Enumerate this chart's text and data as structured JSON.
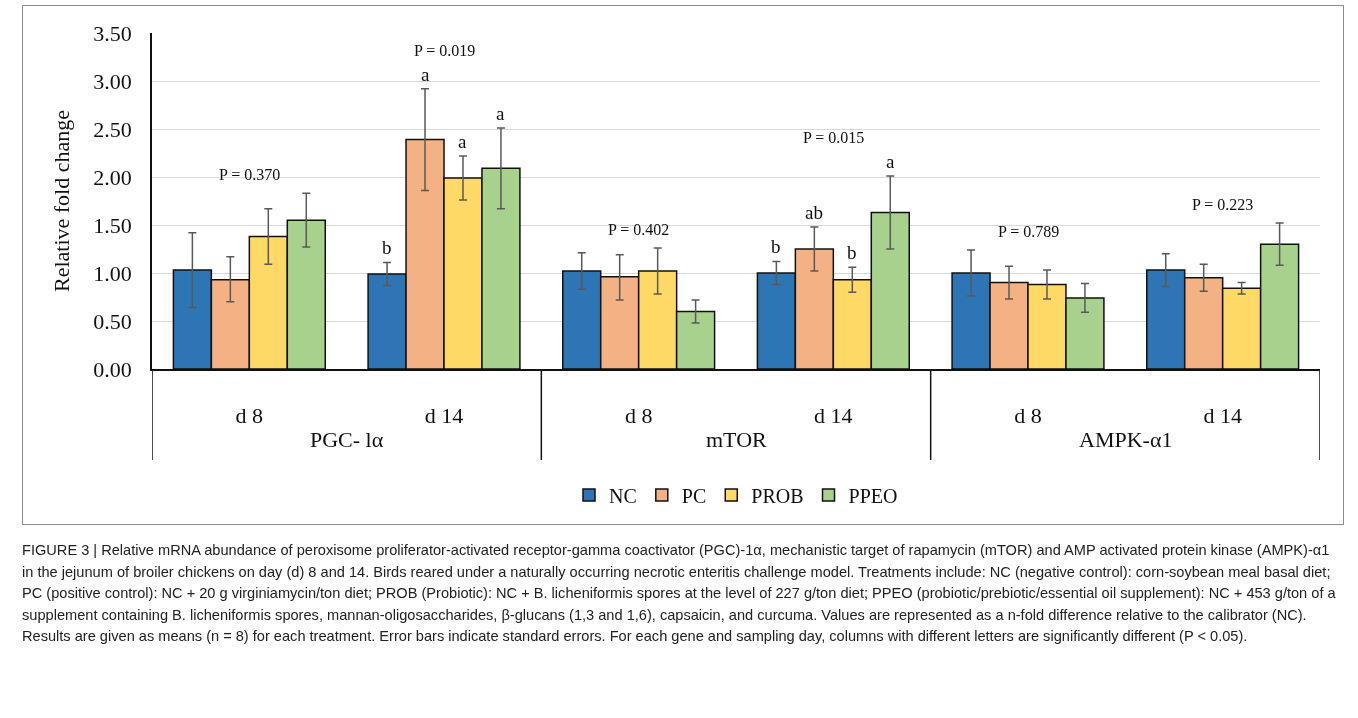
{
  "chart_data": {
    "type": "bar",
    "ylabel": "Relative fold change",
    "categories": [
      "d 8",
      "d 14",
      "d 8",
      "d 14",
      "d 8",
      "d 14"
    ],
    "series": [
      {
        "name": "NC",
        "color": "#2e75b6",
        "values": [
          1.03,
          0.99,
          1.02,
          1.0,
          1.0,
          1.03
        ],
        "errors": [
          [
            0.64,
            1.42
          ],
          [
            0.87,
            1.11
          ],
          [
            0.83,
            1.21
          ],
          [
            0.88,
            1.12
          ],
          [
            0.76,
            1.24
          ],
          [
            0.86,
            1.2
          ]
        ],
        "value_labels": [
          null,
          "b",
          null,
          "b",
          null,
          null
        ]
      },
      {
        "name": "PC",
        "color": "#f4b183",
        "values": [
          0.93,
          2.39,
          0.96,
          1.25,
          0.9,
          0.95
        ],
        "errors": [
          [
            0.7,
            1.17
          ],
          [
            1.86,
            2.92
          ],
          [
            0.72,
            1.19
          ],
          [
            1.02,
            1.48
          ],
          [
            0.73,
            1.07
          ],
          [
            0.81,
            1.09
          ]
        ],
        "value_labels": [
          null,
          "a",
          null,
          "ab",
          null,
          null
        ]
      },
      {
        "name": "PROB",
        "color": "#ffd966",
        "values": [
          1.38,
          1.99,
          1.02,
          0.93,
          0.88,
          0.84
        ],
        "errors": [
          [
            1.09,
            1.67
          ],
          [
            1.76,
            2.22
          ],
          [
            0.78,
            1.26
          ],
          [
            0.8,
            1.06
          ],
          [
            0.73,
            1.03
          ],
          [
            0.78,
            0.9
          ]
        ],
        "value_labels": [
          null,
          "a",
          null,
          "b",
          null,
          null
        ]
      },
      {
        "name": "PPEO",
        "color": "#a9d18e",
        "values": [
          1.55,
          2.09,
          0.6,
          1.63,
          0.74,
          1.3
        ],
        "errors": [
          [
            1.27,
            1.83
          ],
          [
            1.67,
            2.51
          ],
          [
            0.48,
            0.72
          ],
          [
            1.25,
            2.01
          ],
          [
            0.59,
            0.89
          ],
          [
            1.08,
            1.52
          ]
        ],
        "value_labels": [
          null,
          "a",
          null,
          "a",
          null,
          null
        ]
      }
    ],
    "ylim": [
      0,
      3.5
    ],
    "yticks": [
      {
        "value": 0,
        "label": "0.00"
      },
      {
        "value": 0.5,
        "label": "0.50"
      },
      {
        "value": 1,
        "label": "1.00"
      },
      {
        "value": 1.5,
        "label": "1.50"
      },
      {
        "value": 2,
        "label": "2.00"
      },
      {
        "value": 2.5,
        "label": "2.50"
      },
      {
        "value": 3,
        "label": "3.00"
      },
      {
        "value": 3.5,
        "label": "3.50"
      }
    ],
    "grid": "y",
    "legend": "bottom",
    "annotations": [
      "PGC- lα",
      "mTOR",
      "AMPK-α1",
      "P = 0.370",
      "P = 0.019",
      "P = 0.402",
      "P = 0.015",
      "P = 0.789",
      "P = 0.223",
      "FIGURE 3 | Relative mRNA abundance of peroxisome proliferator-activated receptor-gamma coactivator (PGC)-1α, mechanistic target of rapamycin (mTOR) and AMP activated protein kinase (AMPK)-α1 in the jejunum of broiler chickens on day (d) 8 and 14. Birds reared under a naturally occurring necrotic enteritis challenge model. Treatments include: NC (negative control): corn-soybean meal basal diet; PC (positive control): NC + 20 g virginiamycin/ton diet; PROB (Probiotic): NC + B. licheniformis spores at the level of 227 g/ton diet; PPEO (probiotic/prebiotic/essential oil supplement): NC + 453 g/ton of a supplement containing B. licheniformis spores, mannan-oligosaccharides, β-glucans (1,3 and 1,6), capsaicin, and curcuma. Values are represented as a n-fold difference relative to the calibrator (NC). Results are given as means (n = 8) for each treatment. Error bars indicate standard errors. For each gene and sampling day, columns with different letters are significantly different (P < 0.05)."
    ]
  }
}
